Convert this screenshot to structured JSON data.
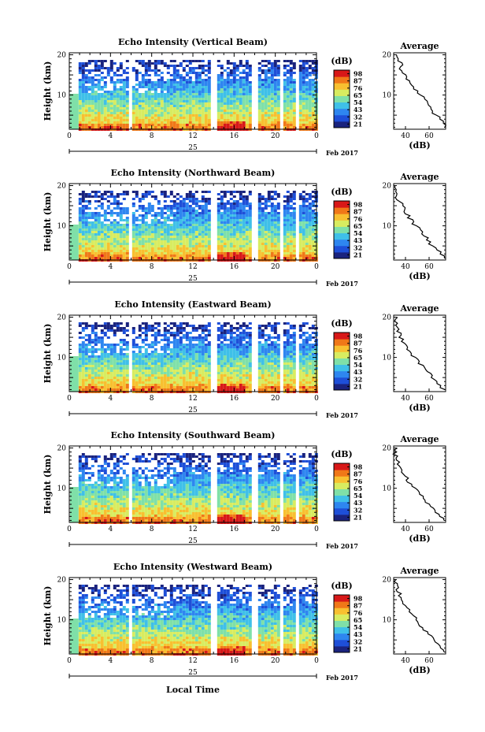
{
  "figure": {
    "xlabel": "Local Time",
    "date_label": "Feb 2017",
    "day_label": "25",
    "colorbar": {
      "unit_label": "(dB)",
      "ticks": [
        "21",
        "32",
        "43",
        "54",
        "65",
        "76",
        "87",
        "98"
      ],
      "range": [
        21,
        98
      ],
      "colors": [
        "#1a237e",
        "#1e4fd8",
        "#2e86f0",
        "#3fc0e8",
        "#7fe0a8",
        "#d8ec60",
        "#f8c030",
        "#f07818",
        "#d81818"
      ]
    }
  },
  "chart_data": [
    {
      "type": "heatmap",
      "title": "Echo Intensity (Vertical Beam)",
      "ylabel": "Height (km)",
      "x_ticks": [
        "0",
        "4",
        "8",
        "12",
        "16",
        "20",
        "0"
      ],
      "xlim": [
        0,
        24
      ],
      "y_ticks": [
        "10",
        "20"
      ],
      "ylim": [
        1.5,
        20.5
      ],
      "data_gaps_hours": [
        [
          5.7,
          5.95
        ],
        [
          13.7,
          13.95
        ],
        [
          17.7,
          17.95
        ],
        [
          20.4,
          20.65
        ],
        [
          21.85,
          22.1
        ]
      ],
      "average_profile": {
        "title": "Average",
        "xlabel": "(dB)",
        "x_ticks": [
          "40",
          "60"
        ],
        "xlim": [
          30,
          74
        ],
        "y_ticks": [
          "10",
          "20"
        ],
        "height_km": [
          2,
          3,
          4,
          5,
          6,
          7,
          8,
          9,
          10,
          11,
          12,
          13,
          14,
          15,
          16,
          17,
          18,
          19,
          20
        ],
        "db": [
          74,
          72,
          69,
          66,
          63,
          61,
          59,
          56,
          52,
          49,
          46,
          44,
          41,
          39,
          36,
          35,
          37,
          34,
          33
        ]
      }
    },
    {
      "type": "heatmap",
      "title": "Echo Intensity (Northward Beam)",
      "ylabel": "Height (km)",
      "x_ticks": [
        "0",
        "4",
        "8",
        "12",
        "16",
        "20",
        "0"
      ],
      "xlim": [
        0,
        24
      ],
      "y_ticks": [
        "10",
        "20"
      ],
      "ylim": [
        1.5,
        20.5
      ],
      "data_gaps_hours": [
        [
          5.7,
          5.95
        ],
        [
          13.7,
          13.95
        ],
        [
          17.7,
          17.95
        ],
        [
          20.4,
          20.65
        ],
        [
          21.85,
          22.1
        ]
      ],
      "average_profile": {
        "title": "Average",
        "xlabel": "(dB)",
        "x_ticks": [
          "40",
          "60"
        ],
        "xlim": [
          30,
          74
        ],
        "y_ticks": [
          "10",
          "20"
        ],
        "height_km": [
          2,
          3,
          4,
          5,
          6,
          7,
          8,
          9,
          10,
          11,
          12,
          13,
          14,
          15,
          16,
          17,
          18,
          19,
          20
        ],
        "db": [
          73,
          70,
          67,
          63,
          60,
          58,
          55,
          52,
          49,
          46,
          43,
          41,
          39,
          37,
          35,
          33,
          34,
          33,
          32
        ]
      }
    },
    {
      "type": "heatmap",
      "title": "Echo Intensity (Eastward Beam)",
      "ylabel": "Height (km)",
      "x_ticks": [
        "0",
        "4",
        "8",
        "12",
        "16",
        "20",
        "0"
      ],
      "xlim": [
        0,
        24
      ],
      "y_ticks": [
        "10",
        "20"
      ],
      "ylim": [
        1.5,
        20.5
      ],
      "data_gaps_hours": [
        [
          5.7,
          5.95
        ],
        [
          13.7,
          13.95
        ],
        [
          17.7,
          17.95
        ],
        [
          20.4,
          20.65
        ],
        [
          21.85,
          22.1
        ]
      ],
      "average_profile": {
        "title": "Average",
        "xlabel": "(dB)",
        "x_ticks": [
          "40",
          "60"
        ],
        "xlim": [
          30,
          74
        ],
        "y_ticks": [
          "10",
          "20"
        ],
        "height_km": [
          2,
          3,
          4,
          5,
          6,
          7,
          8,
          9,
          10,
          11,
          12,
          13,
          14,
          15,
          16,
          17,
          18,
          19,
          20
        ],
        "db": [
          72,
          69,
          66,
          63,
          60,
          57,
          54,
          51,
          48,
          45,
          42,
          40,
          38,
          36,
          35,
          34,
          33,
          32,
          32
        ]
      }
    },
    {
      "type": "heatmap",
      "title": "Echo Intensity (Southward Beam)",
      "ylabel": "Height (km)",
      "x_ticks": [
        "0",
        "4",
        "8",
        "12",
        "16",
        "20",
        "0"
      ],
      "xlim": [
        0,
        24
      ],
      "y_ticks": [
        "10",
        "20"
      ],
      "ylim": [
        1.5,
        20.5
      ],
      "data_gaps_hours": [
        [
          5.7,
          5.95
        ],
        [
          13.7,
          13.95
        ],
        [
          17.7,
          17.95
        ],
        [
          20.4,
          20.65
        ],
        [
          21.85,
          22.1
        ]
      ],
      "average_profile": {
        "title": "Average",
        "xlabel": "(dB)",
        "x_ticks": [
          "40",
          "60"
        ],
        "xlim": [
          30,
          74
        ],
        "y_ticks": [
          "10",
          "20"
        ],
        "height_km": [
          2,
          3,
          4,
          5,
          6,
          7,
          8,
          9,
          10,
          11,
          12,
          13,
          14,
          15,
          16,
          17,
          18,
          19,
          20
        ],
        "db": [
          72,
          70,
          66,
          63,
          60,
          57,
          54,
          51,
          48,
          45,
          42,
          40,
          38,
          36,
          34,
          33,
          32,
          31,
          33
        ]
      }
    },
    {
      "type": "heatmap",
      "title": "Echo Intensity (Westward Beam)",
      "ylabel": "Height (km)",
      "x_ticks": [
        "0",
        "4",
        "8",
        "12",
        "16",
        "20",
        "0"
      ],
      "xlim": [
        0,
        24
      ],
      "y_ticks": [
        "10",
        "20"
      ],
      "ylim": [
        1.5,
        20.5
      ],
      "data_gaps_hours": [
        [
          5.7,
          5.95
        ],
        [
          13.7,
          13.95
        ],
        [
          17.7,
          17.95
        ],
        [
          20.4,
          20.65
        ],
        [
          21.85,
          22.1
        ]
      ],
      "average_profile": {
        "title": "Average",
        "xlabel": "(dB)",
        "x_ticks": [
          "40",
          "60"
        ],
        "xlim": [
          30,
          74
        ],
        "y_ticks": [
          "10",
          "20"
        ],
        "height_km": [
          2,
          3,
          4,
          5,
          6,
          7,
          8,
          9,
          10,
          11,
          12,
          13,
          14,
          15,
          16,
          17,
          18,
          19,
          20
        ],
        "db": [
          73,
          70,
          67,
          64,
          61,
          58,
          55,
          52,
          49,
          46,
          43,
          41,
          38,
          36,
          35,
          34,
          33,
          32,
          32
        ]
      }
    }
  ]
}
